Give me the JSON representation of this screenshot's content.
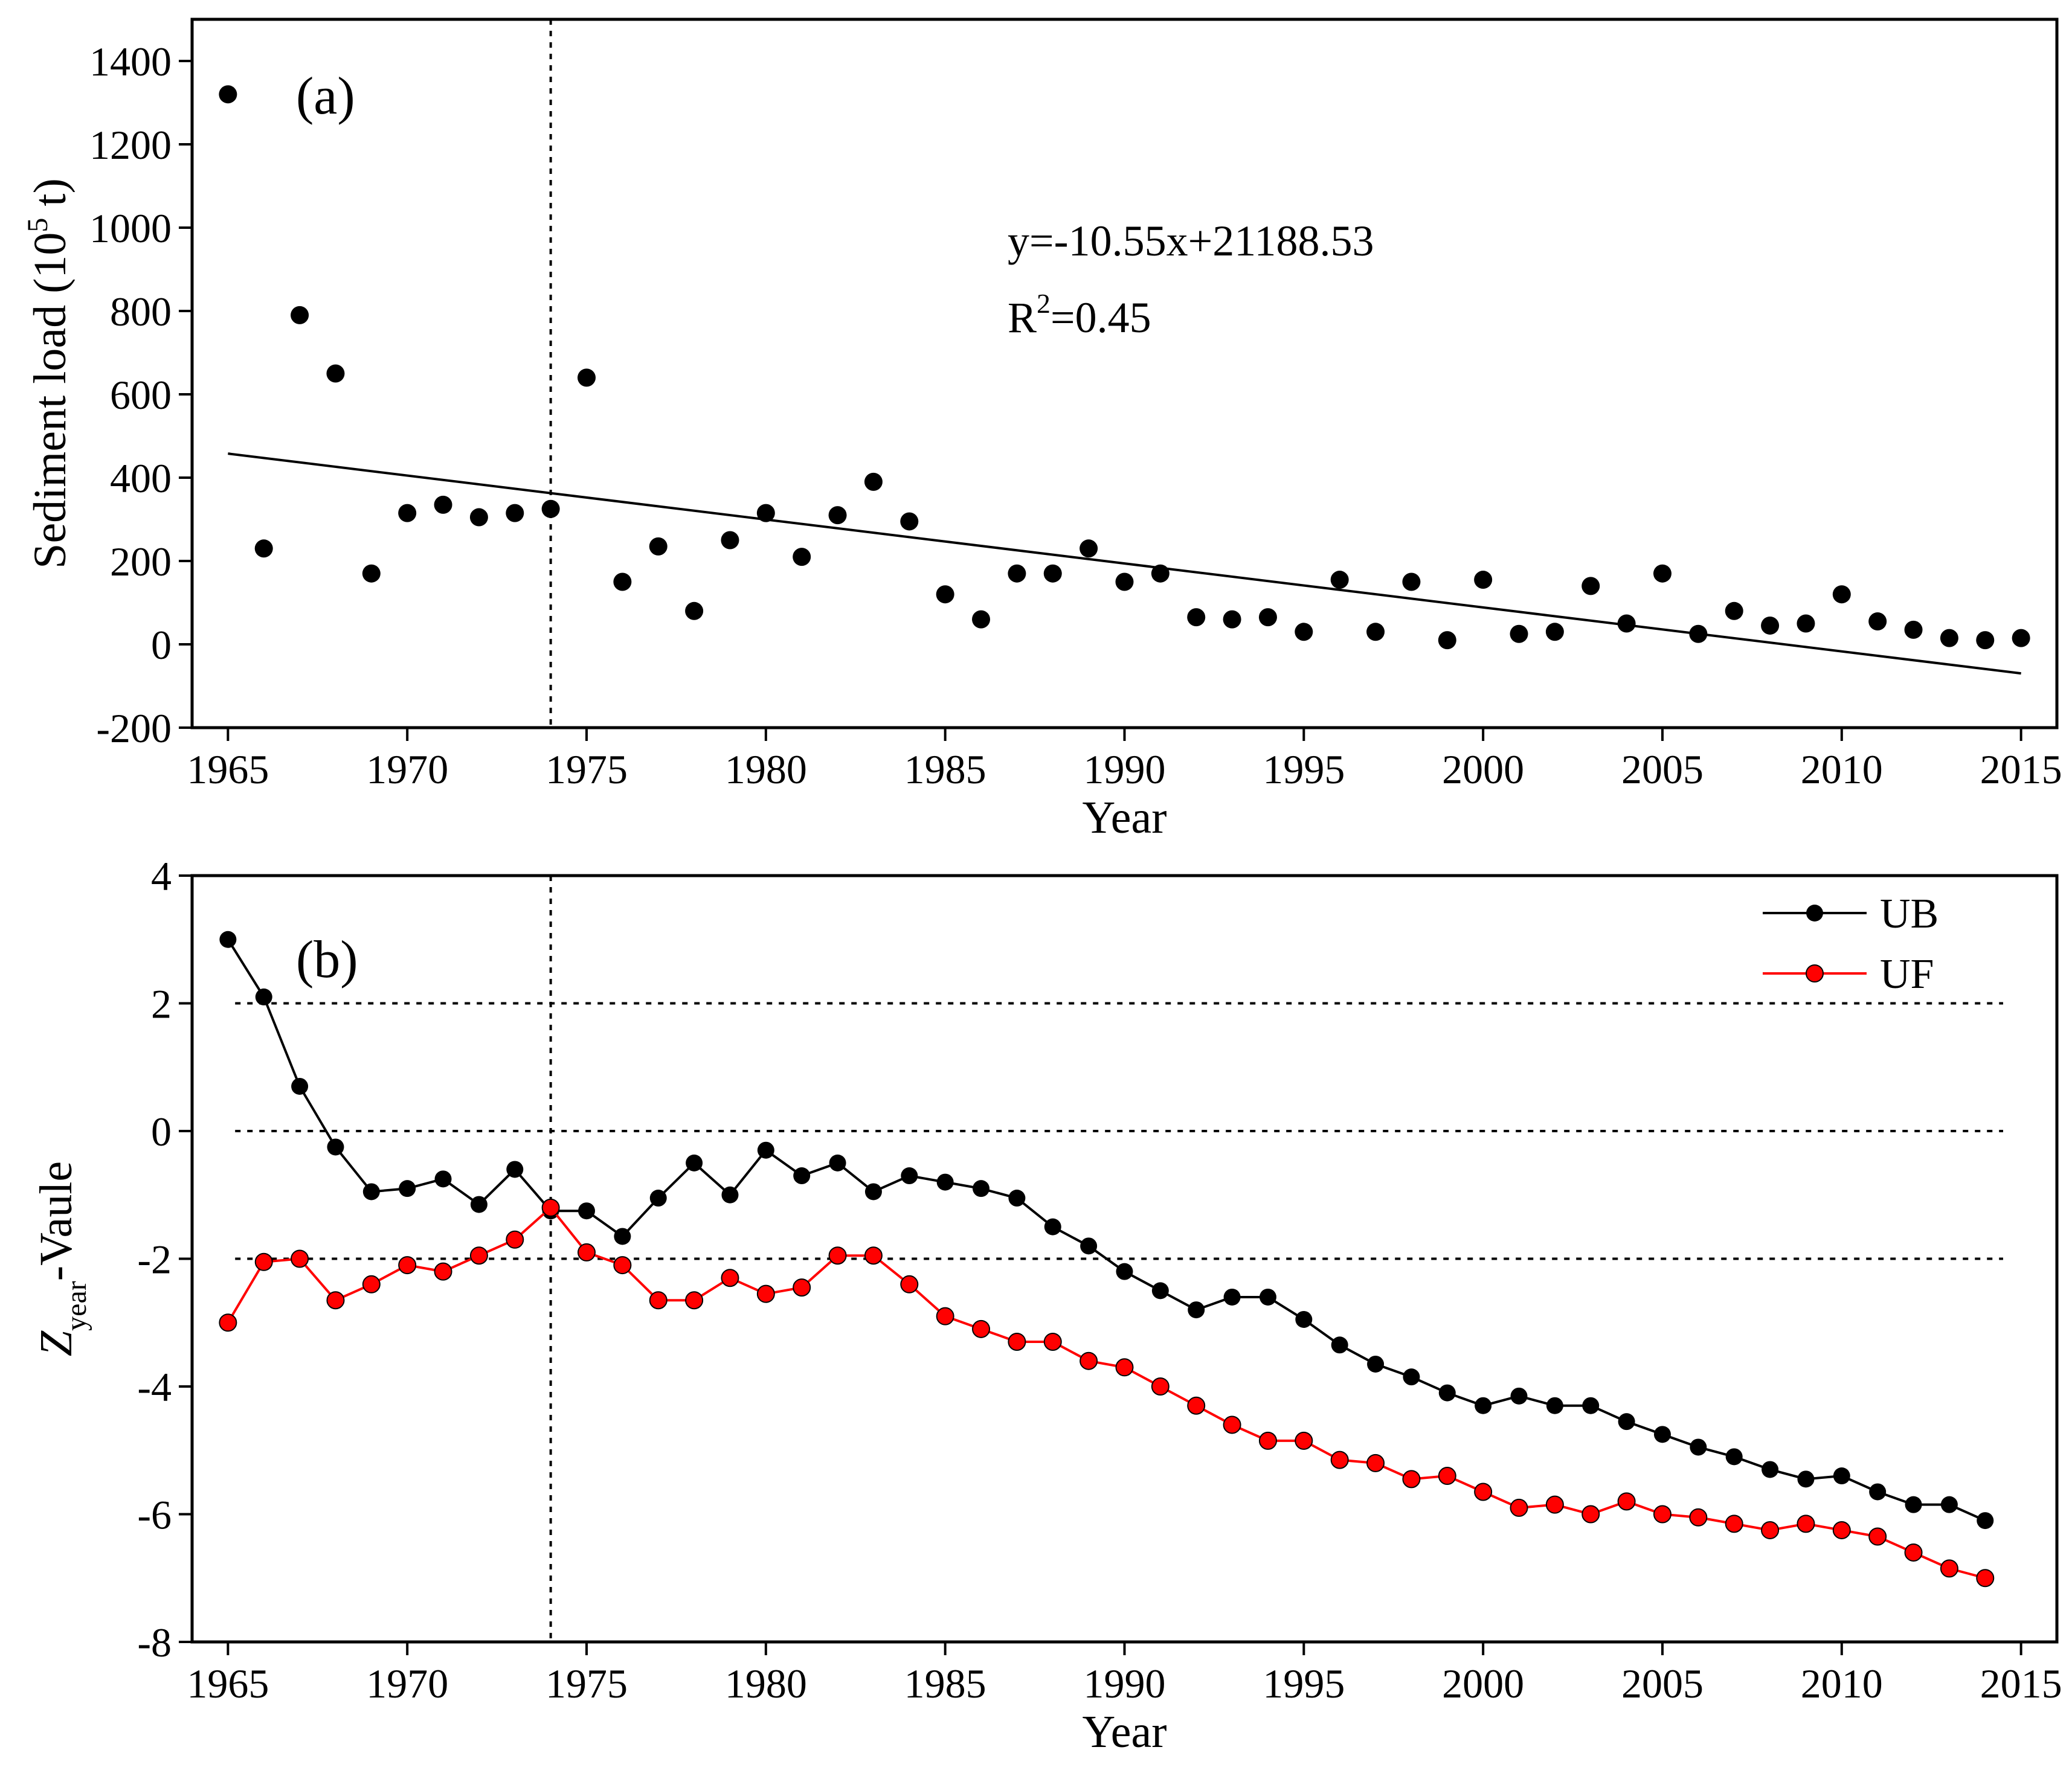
{
  "chart_data": [
    {
      "type": "scatter",
      "panel_label": "(a)",
      "xlabel": "Year",
      "ylabel_main": "Sediment load (10",
      "ylabel_sup": "5",
      "ylabel_tail": " t)",
      "xlim": [
        1964,
        2016
      ],
      "ylim": [
        -200,
        1500
      ],
      "x_ticks": [
        1965,
        1970,
        1975,
        1980,
        1985,
        1990,
        1995,
        2000,
        2005,
        2010,
        2015
      ],
      "y_ticks": [
        -200,
        0,
        200,
        400,
        600,
        800,
        1000,
        1200,
        1400
      ],
      "change_point_year": 1974,
      "points": {
        "x": [
          1965,
          1966,
          1967,
          1968,
          1969,
          1970,
          1971,
          1972,
          1973,
          1974,
          1975,
          1976,
          1977,
          1978,
          1979,
          1980,
          1981,
          1982,
          1983,
          1984,
          1985,
          1986,
          1987,
          1988,
          1989,
          1990,
          1991,
          1992,
          1993,
          1994,
          1995,
          1996,
          1997,
          1998,
          1999,
          2000,
          2001,
          2002,
          2003,
          2004,
          2005,
          2006,
          2007,
          2008,
          2009,
          2010,
          2011,
          2012,
          2013,
          2014,
          2015
        ],
        "y": [
          1320,
          230,
          790,
          650,
          170,
          315,
          335,
          305,
          315,
          325,
          640,
          150,
          235,
          80,
          250,
          315,
          210,
          310,
          390,
          295,
          120,
          60,
          170,
          170,
          230,
          150,
          170,
          65,
          60,
          65,
          30,
          155,
          30,
          150,
          10,
          155,
          25,
          30,
          140,
          50,
          170,
          25,
          80,
          45,
          50,
          120,
          55,
          35,
          15,
          10,
          15
        ]
      },
      "trend": {
        "slope": -10.55,
        "intercept": 21188.53,
        "x_start": 1965,
        "x_end": 2015
      },
      "equation": "y=-10.55x+21188.53",
      "r2_main": "R",
      "r2_sup": "2",
      "r2_tail": "=0.45"
    },
    {
      "type": "line",
      "panel_label": "(b)",
      "xlabel": "Year",
      "ylabel_main": "Z",
      "ylabel_sub": "year",
      "ylabel_tail": "-Vaule",
      "xlim": [
        1964,
        2016
      ],
      "ylim": [
        -8,
        4
      ],
      "x_ticks": [
        1965,
        1970,
        1975,
        1980,
        1985,
        1990,
        1995,
        2000,
        2005,
        2010,
        2015
      ],
      "y_ticks": [
        -8,
        -6,
        -4,
        -2,
        0,
        2,
        4
      ],
      "reference_lines": [
        2,
        0,
        -2
      ],
      "change_point_year": 1974,
      "x": [
        1965,
        1966,
        1967,
        1968,
        1969,
        1970,
        1971,
        1972,
        1973,
        1974,
        1975,
        1976,
        1977,
        1978,
        1979,
        1980,
        1981,
        1982,
        1983,
        1984,
        1985,
        1986,
        1987,
        1988,
        1989,
        1990,
        1991,
        1992,
        1993,
        1994,
        1995,
        1996,
        1997,
        1998,
        1999,
        2000,
        2001,
        2002,
        2003,
        2004,
        2005,
        2006,
        2007,
        2008,
        2009,
        2010,
        2011,
        2012,
        2013,
        2014
      ],
      "series": [
        {
          "name": "UB",
          "color": "#000000",
          "values": [
            3.0,
            2.1,
            0.7,
            -0.25,
            -0.95,
            -0.9,
            -0.75,
            -1.15,
            -0.6,
            -1.25,
            -1.25,
            -1.65,
            -1.05,
            -0.5,
            -1.0,
            -0.3,
            -0.7,
            -0.5,
            -0.95,
            -0.7,
            -0.8,
            -0.9,
            -1.05,
            -1.5,
            -1.8,
            -2.2,
            -2.5,
            -2.8,
            -2.6,
            -2.6,
            -2.95,
            -3.35,
            -3.65,
            -3.85,
            -4.1,
            -4.3,
            -4.15,
            -4.3,
            -4.3,
            -4.55,
            -4.75,
            -4.95,
            -5.1,
            -5.3,
            -5.45,
            -5.4,
            -5.65,
            -5.85,
            -5.85,
            -6.1
          ]
        },
        {
          "name": "UF",
          "color": "#ff0000",
          "values": [
            -3.0,
            -2.05,
            -2.0,
            -2.65,
            -2.4,
            -2.1,
            -2.2,
            -1.95,
            -1.7,
            -1.2,
            -1.9,
            -2.1,
            -2.65,
            -2.65,
            -2.3,
            -2.55,
            -2.45,
            -1.95,
            -1.95,
            -2.4,
            -2.9,
            -3.1,
            -3.3,
            -3.3,
            -3.6,
            -3.7,
            -4.0,
            -4.3,
            -4.6,
            -4.85,
            -4.85,
            -5.15,
            -5.2,
            -5.45,
            -5.4,
            -5.65,
            -5.9,
            -5.85,
            -6.0,
            -5.8,
            -6.0,
            -6.05,
            -6.15,
            -6.25,
            -6.15,
            -6.25,
            -6.35,
            -6.6,
            -6.85,
            -7.0
          ]
        }
      ]
    }
  ]
}
